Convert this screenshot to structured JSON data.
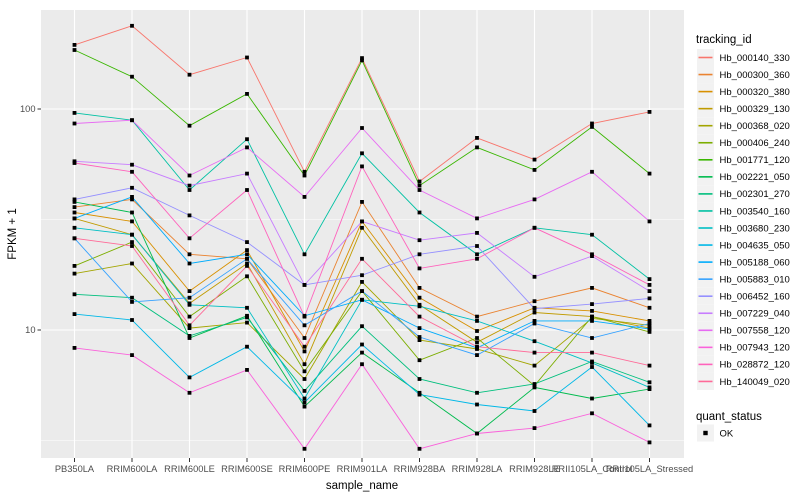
{
  "chart_data": {
    "type": "line",
    "title": "",
    "xlabel": "sample_name",
    "ylabel": "FPKM + 1",
    "y_scale": "log10",
    "ylim": [
      2.4,
      280
    ],
    "y_major_ticks": [
      100,
      10
    ],
    "y_tick_labels": [
      "100",
      "10"
    ],
    "y_minor_ticks": [
      31.62,
      3.162
    ],
    "grid": true,
    "panel_color": "#EBEBEB",
    "grid_color": "#FFFFFF",
    "marker": "square",
    "marker_color": "#000000",
    "categories": [
      "PB350LA",
      "RRIM600LA",
      "RRIM600LE",
      "RRIM600SE",
      "RRIM600PE",
      "RRIM901LA",
      "RRIM928BA",
      "RRIM928LA",
      "RRIM928LE",
      "RRII105LA_Control",
      "RRII105LA_Stressed"
    ],
    "legend_title": "tracking_id",
    "legend_position": "right",
    "quant_legend": {
      "title": "quant_status",
      "items": [
        {
          "label": "OK"
        }
      ]
    },
    "series": [
      {
        "name": "Hb_000140_330",
        "color": "#F8766D",
        "values": [
          195,
          238,
          143,
          171,
          52,
          170,
          47,
          74,
          59,
          86,
          97
        ]
      },
      {
        "name": "Hb_000300_360",
        "color": "#EA8331",
        "values": [
          36,
          39,
          22,
          21,
          9.2,
          38,
          15.5,
          11.5,
          13.5,
          15.5,
          12.6
        ]
      },
      {
        "name": "Hb_000320_380",
        "color": "#D89000",
        "values": [
          34,
          31,
          15,
          23,
          8,
          31,
          14,
          9.9,
          12.6,
          12.2,
          11
        ]
      },
      {
        "name": "Hb_000329_130",
        "color": "#C09B00",
        "values": [
          32,
          27,
          13.2,
          20,
          7,
          29,
          13,
          8.8,
          12,
          11.5,
          10.2
        ]
      },
      {
        "name": "Hb_000368_020",
        "color": "#A3A500",
        "values": [
          18,
          20,
          10.2,
          10.8,
          6,
          16.5,
          9,
          8.2,
          6.9,
          11.3,
          10.5
        ]
      },
      {
        "name": "Hb_000406_240",
        "color": "#7CAE00",
        "values": [
          19.5,
          25,
          11.5,
          17.5,
          6.5,
          15,
          7.3,
          9.2,
          5.6,
          11.5,
          9.8
        ]
      },
      {
        "name": "Hb_001771_120",
        "color": "#39B600",
        "values": [
          185,
          140,
          84,
          117,
          50,
          166,
          45,
          67,
          53,
          83,
          51
        ]
      },
      {
        "name": "Hb_002221_050",
        "color": "#00BB4E",
        "values": [
          38,
          34,
          9.2,
          11.6,
          4.5,
          7.9,
          5.2,
          3.4,
          5.5,
          4.9,
          5.4
        ]
      },
      {
        "name": "Hb_002301_270",
        "color": "#00BF7D",
        "values": [
          14.5,
          14,
          9.4,
          11.4,
          5.3,
          10.4,
          6,
          5.2,
          5.7,
          7.2,
          5.8
        ]
      },
      {
        "name": "Hb_003540_160",
        "color": "#00C1A3",
        "values": [
          96,
          89,
          43,
          73,
          22,
          63,
          34,
          22,
          29,
          27,
          17
        ]
      },
      {
        "name": "Hb_003680_230",
        "color": "#00BFC4",
        "values": [
          29,
          27,
          13,
          12.6,
          4.9,
          13.7,
          12.8,
          11,
          8.9,
          7.1,
          5.5
        ]
      },
      {
        "name": "Hb_004635_050",
        "color": "#00B8E7",
        "values": [
          11.8,
          11.1,
          6.1,
          8.4,
          4.7,
          8.6,
          5.1,
          4.6,
          4.3,
          6.8,
          3.7
        ]
      },
      {
        "name": "Hb_005188_060",
        "color": "#00ACFC",
        "values": [
          32,
          40,
          20,
          22,
          11.6,
          13.7,
          10.2,
          8.3,
          11,
          11,
          10.1
        ]
      },
      {
        "name": "Hb_005883_010",
        "color": "#35A2FF",
        "values": [
          26,
          13.4,
          14,
          21,
          10.5,
          15,
          9.3,
          7.7,
          10.7,
          9.2,
          10.7
        ]
      },
      {
        "name": "Hb_006452_160",
        "color": "#9590FF",
        "values": [
          39,
          44,
          33,
          25,
          16,
          17.7,
          22,
          24,
          12.5,
          13.1,
          13.9
        ]
      },
      {
        "name": "Hb_007229_040",
        "color": "#C77CFF",
        "values": [
          58,
          56,
          45,
          51,
          16,
          31,
          25.5,
          27.5,
          17.4,
          21.6,
          15
        ]
      },
      {
        "name": "Hb_007558_120",
        "color": "#E76BF3",
        "values": [
          86,
          89,
          50,
          67,
          40,
          82,
          43,
          32,
          39,
          52,
          31
        ]
      },
      {
        "name": "Hb_007943_120",
        "color": "#FA62DB",
        "values": [
          8.3,
          7.7,
          5.2,
          6.6,
          2.9,
          7,
          2.9,
          3.4,
          3.6,
          4.2,
          3.1
        ]
      },
      {
        "name": "Hb_028872_120",
        "color": "#FF62BC",
        "values": [
          57,
          52,
          26,
          43,
          11.5,
          55,
          19,
          21,
          29,
          22,
          16
        ]
      },
      {
        "name": "Hb_140049_020",
        "color": "#FF6A98",
        "values": [
          26,
          24,
          10.5,
          19.5,
          8.4,
          21,
          11.5,
          8.4,
          7.9,
          7.9,
          6.9
        ]
      }
    ]
  }
}
